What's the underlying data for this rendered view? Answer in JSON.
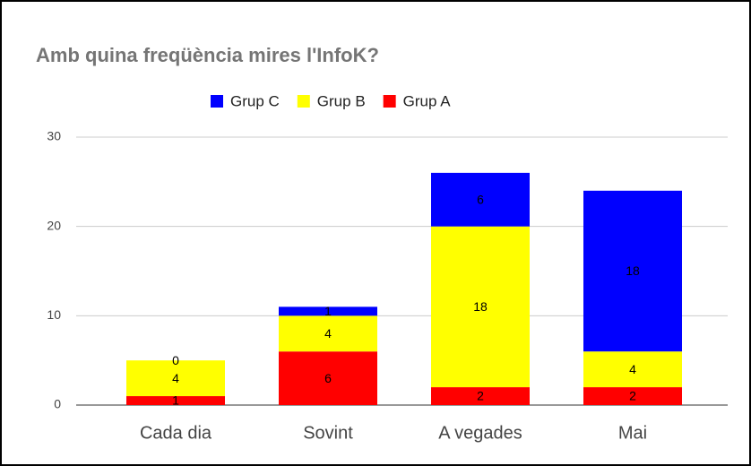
{
  "chart_data": {
    "type": "bar",
    "stacked": true,
    "title": "Amb quina freqüència mires l'InfoK?",
    "categories": [
      "Cada dia",
      "Sovint",
      "A vegades",
      "Mai"
    ],
    "series": [
      {
        "name": "Grup C",
        "color": "#0000ff",
        "values": [
          0,
          1,
          6,
          18
        ]
      },
      {
        "name": "Grup B",
        "color": "#ffff00",
        "values": [
          4,
          4,
          18,
          4
        ]
      },
      {
        "name": "Grup A",
        "color": "#ff0000",
        "values": [
          1,
          6,
          2,
          2
        ]
      }
    ],
    "ylim": [
      0,
      30
    ],
    "yticks": [
      0,
      10,
      20,
      30
    ],
    "grid": true,
    "legend": "top"
  }
}
